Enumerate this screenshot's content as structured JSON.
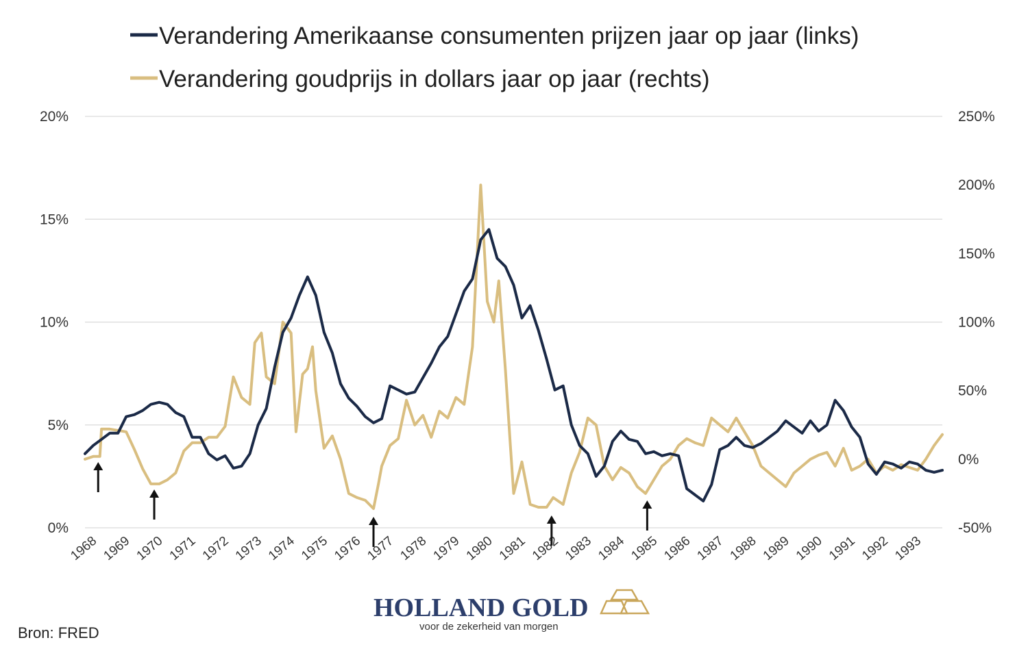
{
  "chart_data": {
    "type": "line",
    "legend_placement": "top",
    "grid": true,
    "series": [
      {
        "name": "Verandering Amerikaanse consumenten prijzen jaar op jaar (links)",
        "axis": "left",
        "color": "#1b2a47",
        "points": [
          [
            1968.0,
            3.6
          ],
          [
            1968.25,
            4.0
          ],
          [
            1968.5,
            4.3
          ],
          [
            1968.75,
            4.6
          ],
          [
            1969.0,
            4.6
          ],
          [
            1969.25,
            5.4
          ],
          [
            1969.5,
            5.5
          ],
          [
            1969.75,
            5.7
          ],
          [
            1970.0,
            6.0
          ],
          [
            1970.25,
            6.1
          ],
          [
            1970.5,
            6.0
          ],
          [
            1970.75,
            5.6
          ],
          [
            1971.0,
            5.4
          ],
          [
            1971.25,
            4.4
          ],
          [
            1971.5,
            4.4
          ],
          [
            1971.75,
            3.6
          ],
          [
            1972.0,
            3.3
          ],
          [
            1972.25,
            3.5
          ],
          [
            1972.5,
            2.9
          ],
          [
            1972.75,
            3.0
          ],
          [
            1973.0,
            3.6
          ],
          [
            1973.25,
            5.0
          ],
          [
            1973.5,
            5.8
          ],
          [
            1973.75,
            7.8
          ],
          [
            1974.0,
            9.5
          ],
          [
            1974.25,
            10.2
          ],
          [
            1974.5,
            11.3
          ],
          [
            1974.75,
            12.2
          ],
          [
            1975.0,
            11.3
          ],
          [
            1975.25,
            9.5
          ],
          [
            1975.5,
            8.5
          ],
          [
            1975.75,
            7.0
          ],
          [
            1976.0,
            6.3
          ],
          [
            1976.25,
            5.9
          ],
          [
            1976.5,
            5.4
          ],
          [
            1976.75,
            5.1
          ],
          [
            1977.0,
            5.3
          ],
          [
            1977.25,
            6.9
          ],
          [
            1977.5,
            6.7
          ],
          [
            1977.75,
            6.5
          ],
          [
            1978.0,
            6.6
          ],
          [
            1978.25,
            7.3
          ],
          [
            1978.5,
            8.0
          ],
          [
            1978.75,
            8.8
          ],
          [
            1979.0,
            9.3
          ],
          [
            1979.25,
            10.4
          ],
          [
            1979.5,
            11.5
          ],
          [
            1979.75,
            12.1
          ],
          [
            1980.0,
            14.0
          ],
          [
            1980.25,
            14.5
          ],
          [
            1980.5,
            13.1
          ],
          [
            1980.75,
            12.7
          ],
          [
            1981.0,
            11.8
          ],
          [
            1981.25,
            10.2
          ],
          [
            1981.5,
            10.8
          ],
          [
            1981.75,
            9.6
          ],
          [
            1982.0,
            8.2
          ],
          [
            1982.25,
            6.7
          ],
          [
            1982.5,
            6.9
          ],
          [
            1982.75,
            5.0
          ],
          [
            1983.0,
            4.0
          ],
          [
            1983.25,
            3.6
          ],
          [
            1983.5,
            2.5
          ],
          [
            1983.75,
            3.0
          ],
          [
            1984.0,
            4.2
          ],
          [
            1984.25,
            4.7
          ],
          [
            1984.5,
            4.3
          ],
          [
            1984.75,
            4.2
          ],
          [
            1985.0,
            3.6
          ],
          [
            1985.25,
            3.7
          ],
          [
            1985.5,
            3.5
          ],
          [
            1985.75,
            3.6
          ],
          [
            1986.0,
            3.5
          ],
          [
            1986.25,
            1.9
          ],
          [
            1986.5,
            1.6
          ],
          [
            1986.75,
            1.3
          ],
          [
            1987.0,
            2.1
          ],
          [
            1987.25,
            3.8
          ],
          [
            1987.5,
            4.0
          ],
          [
            1987.75,
            4.4
          ],
          [
            1988.0,
            4.0
          ],
          [
            1988.25,
            3.9
          ],
          [
            1988.5,
            4.1
          ],
          [
            1988.75,
            4.4
          ],
          [
            1989.0,
            4.7
          ],
          [
            1989.25,
            5.2
          ],
          [
            1989.5,
            4.9
          ],
          [
            1989.75,
            4.6
          ],
          [
            1990.0,
            5.2
          ],
          [
            1990.25,
            4.7
          ],
          [
            1990.5,
            5.0
          ],
          [
            1990.75,
            6.2
          ],
          [
            1991.0,
            5.7
          ],
          [
            1991.25,
            4.9
          ],
          [
            1991.5,
            4.4
          ],
          [
            1991.75,
            3.1
          ],
          [
            1992.0,
            2.6
          ],
          [
            1992.25,
            3.2
          ],
          [
            1992.5,
            3.1
          ],
          [
            1992.75,
            2.9
          ],
          [
            1993.0,
            3.2
          ],
          [
            1993.25,
            3.1
          ],
          [
            1993.5,
            2.8
          ],
          [
            1993.75,
            2.7
          ],
          [
            1994.0,
            2.8
          ]
        ]
      },
      {
        "name": "Verandering goudprijs in dollars jaar op jaar (rechts)",
        "axis": "right",
        "color": "#d9be80",
        "points": [
          [
            1968.0,
            0
          ],
          [
            1968.25,
            2
          ],
          [
            1968.45,
            2
          ],
          [
            1968.5,
            22
          ],
          [
            1968.75,
            22
          ],
          [
            1969.0,
            21
          ],
          [
            1969.25,
            20
          ],
          [
            1969.5,
            7
          ],
          [
            1969.75,
            -7
          ],
          [
            1970.0,
            -18
          ],
          [
            1970.25,
            -18
          ],
          [
            1970.5,
            -15
          ],
          [
            1970.75,
            -10
          ],
          [
            1971.0,
            6
          ],
          [
            1971.25,
            12
          ],
          [
            1971.5,
            12
          ],
          [
            1971.75,
            16
          ],
          [
            1972.0,
            16
          ],
          [
            1972.25,
            24
          ],
          [
            1972.5,
            60
          ],
          [
            1972.75,
            45
          ],
          [
            1973.0,
            40
          ],
          [
            1973.15,
            85
          ],
          [
            1973.35,
            92
          ],
          [
            1973.5,
            60
          ],
          [
            1973.75,
            55
          ],
          [
            1974.0,
            100
          ],
          [
            1974.25,
            92
          ],
          [
            1974.4,
            20
          ],
          [
            1974.6,
            62
          ],
          [
            1974.75,
            66
          ],
          [
            1974.9,
            82
          ],
          [
            1975.0,
            50
          ],
          [
            1975.25,
            8
          ],
          [
            1975.5,
            17
          ],
          [
            1975.75,
            0
          ],
          [
            1976.0,
            -25
          ],
          [
            1976.25,
            -28
          ],
          [
            1976.5,
            -30
          ],
          [
            1976.75,
            -36
          ],
          [
            1976.9,
            -18
          ],
          [
            1977.0,
            -5
          ],
          [
            1977.25,
            10
          ],
          [
            1977.5,
            15
          ],
          [
            1977.75,
            43
          ],
          [
            1978.0,
            25
          ],
          [
            1978.25,
            32
          ],
          [
            1978.5,
            16
          ],
          [
            1978.75,
            35
          ],
          [
            1979.0,
            30
          ],
          [
            1979.25,
            45
          ],
          [
            1979.5,
            40
          ],
          [
            1979.75,
            82
          ],
          [
            1980.0,
            200
          ],
          [
            1980.2,
            115
          ],
          [
            1980.4,
            100
          ],
          [
            1980.55,
            130
          ],
          [
            1980.75,
            65
          ],
          [
            1980.9,
            10
          ],
          [
            1981.0,
            -25
          ],
          [
            1981.25,
            -2
          ],
          [
            1981.5,
            -33
          ],
          [
            1981.75,
            -35
          ],
          [
            1982.0,
            -35
          ],
          [
            1982.2,
            -28
          ],
          [
            1982.5,
            -33
          ],
          [
            1982.75,
            -10
          ],
          [
            1983.0,
            5
          ],
          [
            1983.25,
            30
          ],
          [
            1983.5,
            25
          ],
          [
            1983.75,
            -5
          ],
          [
            1984.0,
            -15
          ],
          [
            1984.25,
            -6
          ],
          [
            1984.5,
            -10
          ],
          [
            1984.75,
            -20
          ],
          [
            1985.0,
            -25
          ],
          [
            1985.25,
            -15
          ],
          [
            1985.5,
            -5
          ],
          [
            1985.75,
            0
          ],
          [
            1986.0,
            10
          ],
          [
            1986.25,
            15
          ],
          [
            1986.5,
            12
          ],
          [
            1986.75,
            10
          ],
          [
            1987.0,
            30
          ],
          [
            1987.25,
            25
          ],
          [
            1987.5,
            20
          ],
          [
            1987.75,
            30
          ],
          [
            1988.0,
            20
          ],
          [
            1988.25,
            10
          ],
          [
            1988.5,
            -5
          ],
          [
            1988.75,
            -10
          ],
          [
            1989.0,
            -15
          ],
          [
            1989.25,
            -20
          ],
          [
            1989.5,
            -10
          ],
          [
            1989.75,
            -5
          ],
          [
            1990.0,
            0
          ],
          [
            1990.25,
            3
          ],
          [
            1990.5,
            5
          ],
          [
            1990.75,
            -5
          ],
          [
            1991.0,
            8
          ],
          [
            1991.25,
            -8
          ],
          [
            1991.5,
            -5
          ],
          [
            1991.75,
            0
          ],
          [
            1992.0,
            -10
          ],
          [
            1992.25,
            -5
          ],
          [
            1992.5,
            -8
          ],
          [
            1992.75,
            -4
          ],
          [
            1993.0,
            -6
          ],
          [
            1993.25,
            -8
          ],
          [
            1993.5,
            0
          ],
          [
            1993.75,
            10
          ],
          [
            1994.0,
            18
          ]
        ]
      }
    ],
    "left_axis": {
      "ylim": [
        0,
        20
      ],
      "ticks": [
        "0%",
        "5%",
        "10%",
        "15%",
        "20%"
      ],
      "tick_values": [
        0,
        5,
        10,
        15,
        20
      ]
    },
    "right_axis": {
      "ylim": [
        -50,
        250
      ],
      "ticks": [
        "-50%",
        "0%",
        "50%",
        "100%",
        "150%",
        "200%",
        "250%"
      ],
      "tick_values": [
        -50,
        0,
        50,
        100,
        150,
        200,
        250
      ]
    },
    "x_axis": {
      "xlim": [
        1968,
        1994
      ],
      "ticks": [
        "1968",
        "1969",
        "1970",
        "1971",
        "1972",
        "1973",
        "1974",
        "1975",
        "1976",
        "1977",
        "1978",
        "1979",
        "1980",
        "1981",
        "1982",
        "1983",
        "1984",
        "1985",
        "1986",
        "1987",
        "1988",
        "1989",
        "1990",
        "1991",
        "1992",
        "1993"
      ]
    },
    "annotations": {
      "arrows_at_x": [
        1968.4,
        1970.1,
        1976.75,
        1982.15,
        1985.05
      ]
    }
  },
  "footer": {
    "source": "Bron: FRED",
    "logo_name": "HOLLAND GOLD",
    "logo_tagline": "voor de zekerheid van morgen"
  },
  "colors": {
    "gridline": "#d9d9d9",
    "arrow": "#111111",
    "logo_gold": "#c9a65a",
    "logo_blue": "#2c3e6b"
  }
}
